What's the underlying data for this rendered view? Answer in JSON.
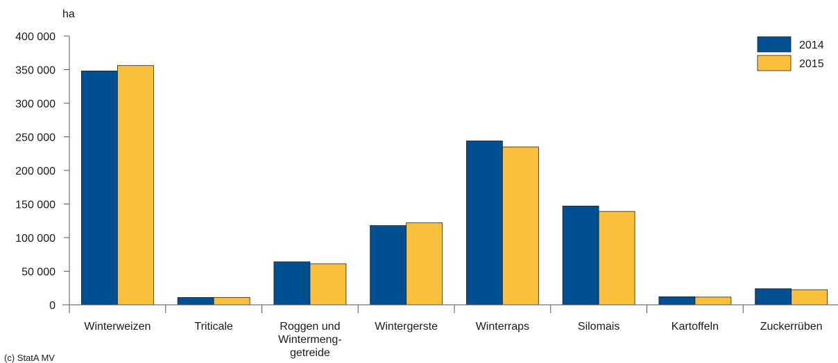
{
  "chart_data": {
    "type": "bar",
    "ylabel": "ha",
    "categories": [
      [
        "Winterweizen"
      ],
      [
        "Triticale"
      ],
      [
        "Roggen und",
        "Wintermeng-",
        "getreide"
      ],
      [
        "Wintergerste"
      ],
      [
        "Winterraps"
      ],
      [
        "Silomais"
      ],
      [
        "Kartoffeln"
      ],
      [
        "Zuckerrüben"
      ]
    ],
    "series": [
      {
        "name": "2014",
        "color": "#004f91",
        "values": [
          348000,
          11000,
          64000,
          118000,
          244000,
          147000,
          12000,
          24000
        ]
      },
      {
        "name": "2015",
        "color": "#f8c03c",
        "values": [
          356000,
          11000,
          61000,
          122000,
          235000,
          139000,
          11500,
          22500
        ]
      }
    ],
    "ylim": [
      0,
      400000
    ],
    "yticks": [
      0,
      50000,
      100000,
      150000,
      200000,
      250000,
      300000,
      350000,
      400000
    ],
    "ytick_labels": [
      "0",
      "50 000",
      "100 000",
      "150 000",
      "200 000",
      "250 000",
      "300 000",
      "350 000",
      "400 000"
    ],
    "grid": false,
    "legend": "top-right",
    "source": "(c) StatA MV"
  }
}
